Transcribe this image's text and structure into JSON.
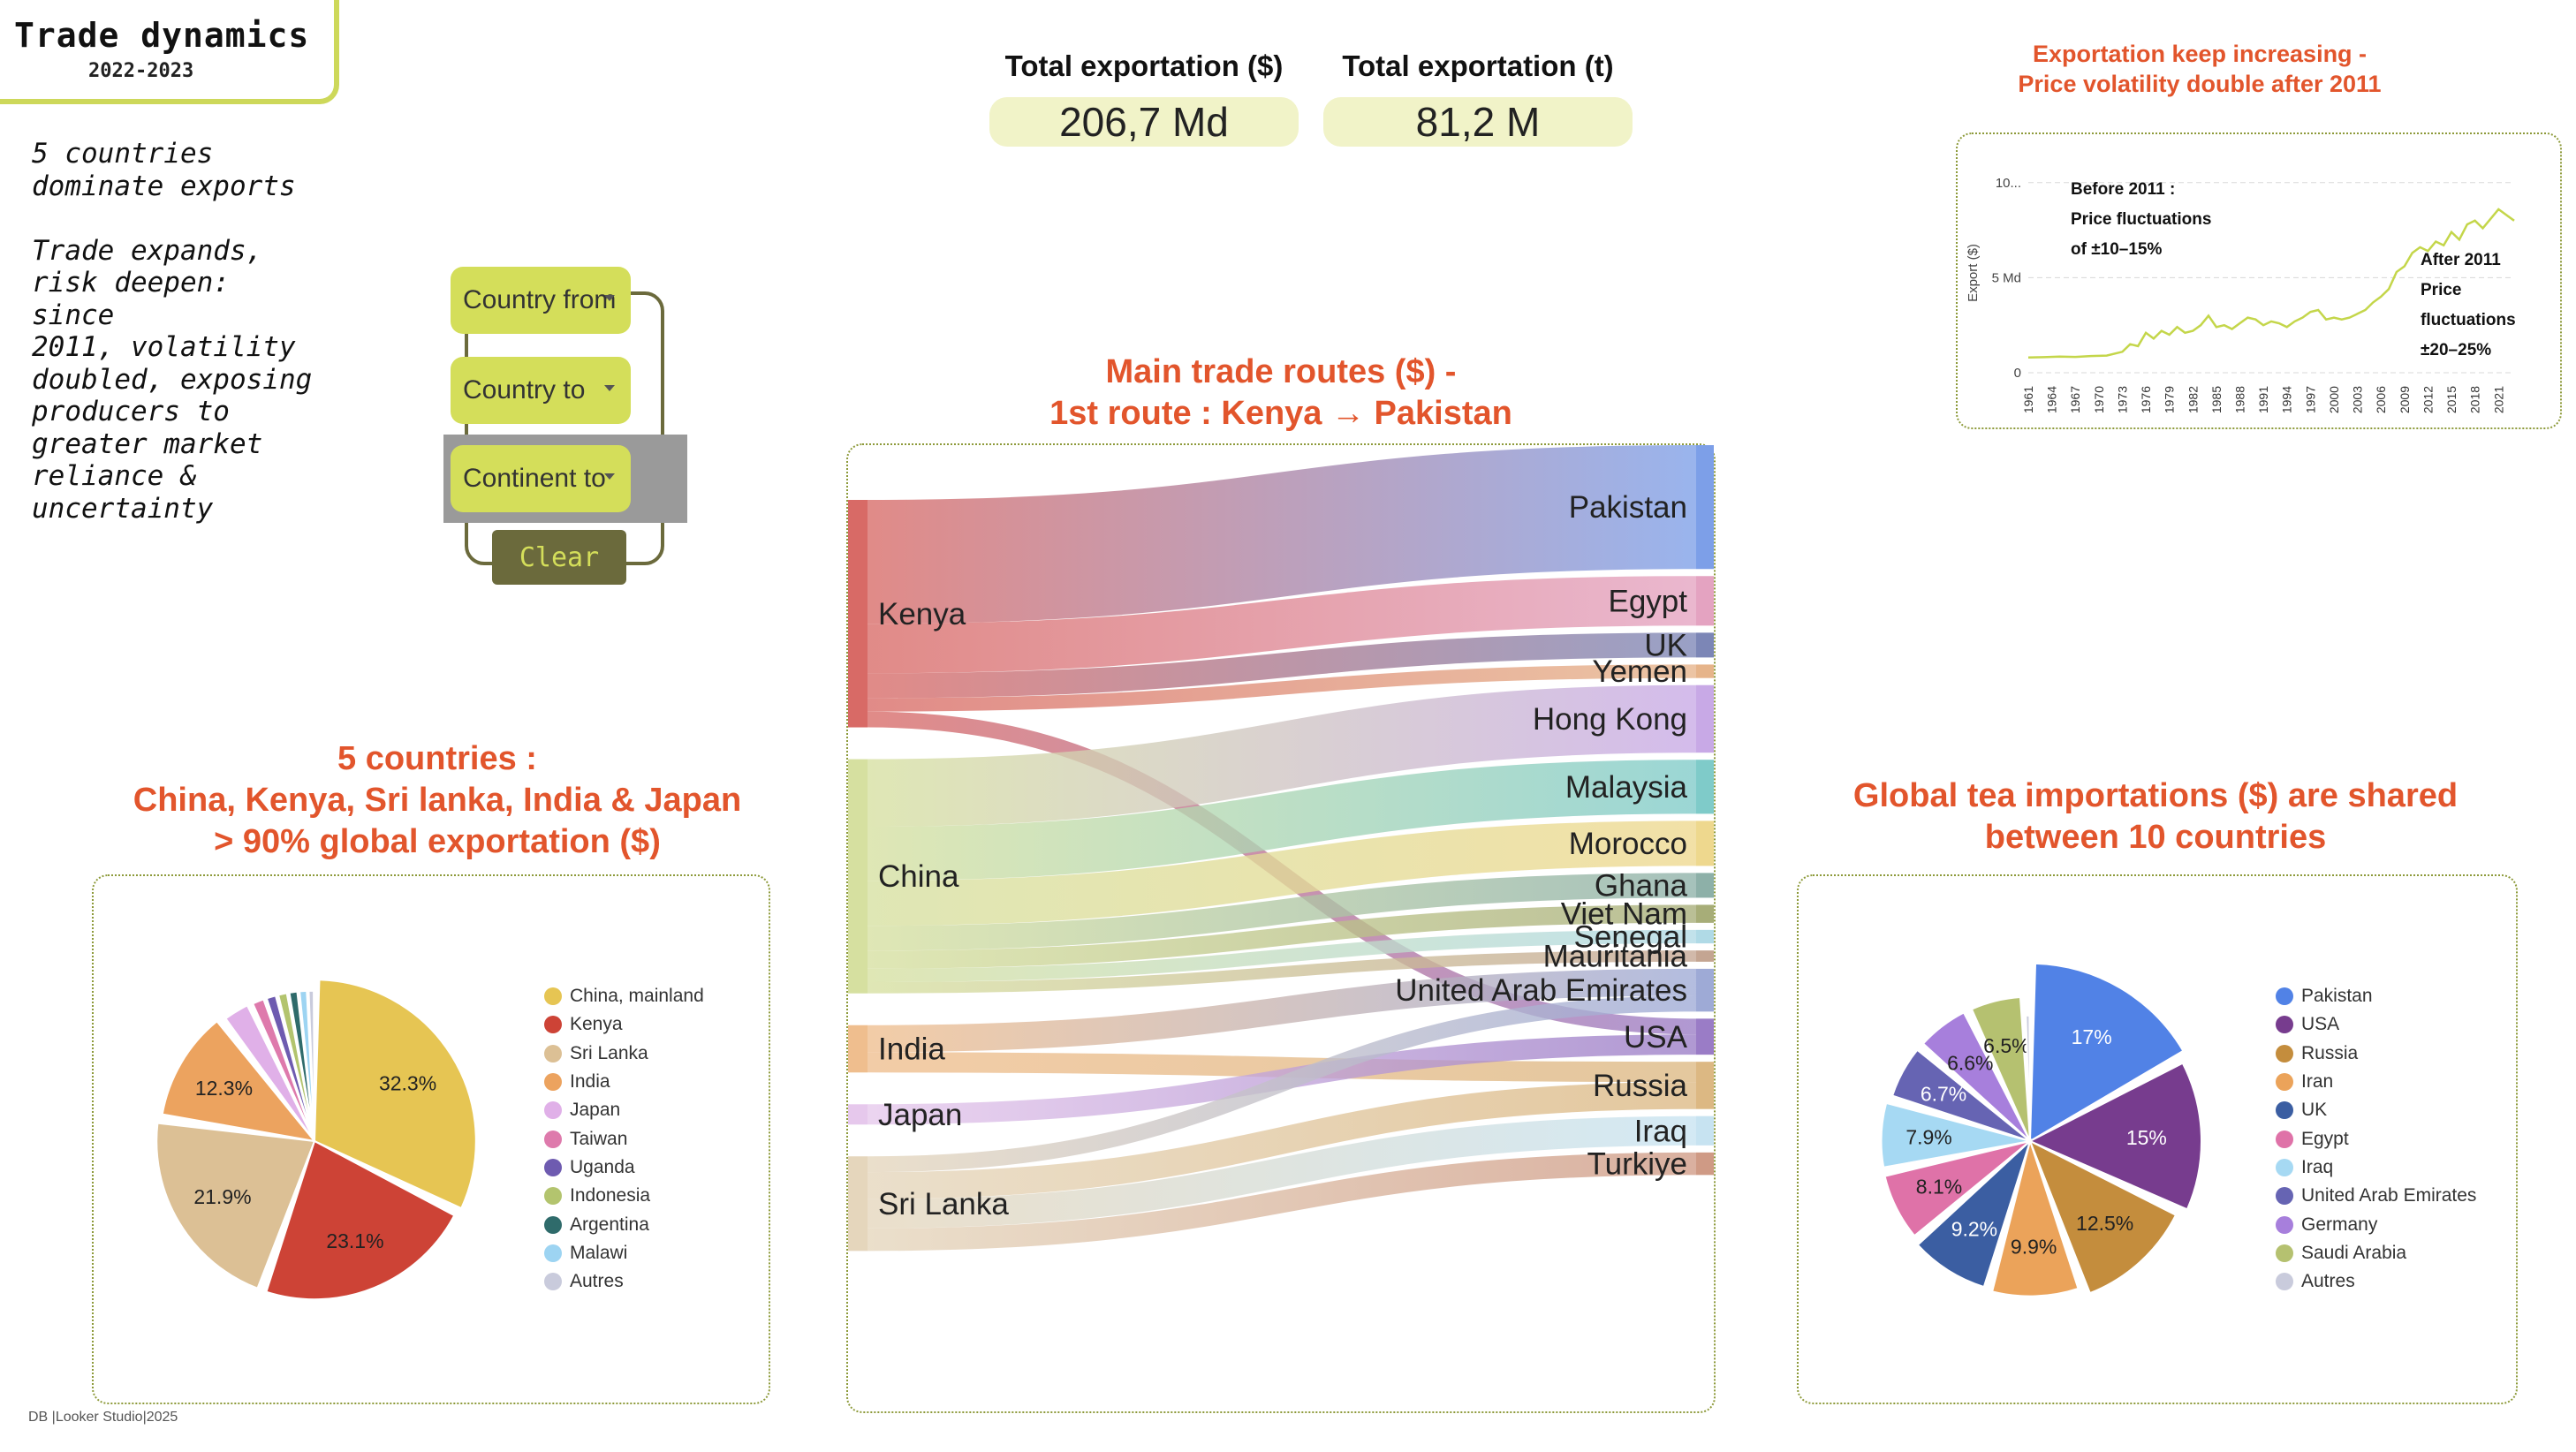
{
  "header": {
    "title": "Trade dynamics",
    "subtitle": "2022-2023"
  },
  "intro_text": "5 countries\ndominate exports\n\nTrade expands,\nrisk deepen: since\n2011, volatility\ndoubled, exposing\nproducers to\ngreater market\nreliance &\nuncertainty",
  "filters": {
    "country_from": "Country from",
    "country_to": "Country to",
    "continent_to": "Continent to",
    "clear": "Clear"
  },
  "kpis": [
    {
      "label": "Total exportation ($)",
      "value": "206,7 Md"
    },
    {
      "label": "Total exportation (t)",
      "value": "81,2 M"
    }
  ],
  "footer": "DB |Looker Studio|2025",
  "colors": {
    "accent": "#cdd85a",
    "title_orange": "#e2552c",
    "panel_border": "#8d9a3a",
    "kpi_bg": "#f1f3c8"
  },
  "chart_data": [
    {
      "id": "trend",
      "type": "line",
      "title": "Exportation keep increasing - Price volatility double after 2011",
      "title_lines": [
        "Exportation keep increasing -",
        "Price volatility double after 2011"
      ],
      "ylabel": "Export ($)",
      "yticks": [
        {
          "value": 0,
          "label": "0"
        },
        {
          "value": 5,
          "label": "5 Md"
        },
        {
          "value": 10,
          "label": "10..."
        }
      ],
      "ylim": [
        0,
        10.5
      ],
      "xlim": [
        1961,
        2023
      ],
      "xticks": [
        "1961",
        "1964",
        "1967",
        "1970",
        "1973",
        "1976",
        "1979",
        "1982",
        "1985",
        "1988",
        "1991",
        "1994",
        "1997",
        "2000",
        "2003",
        "2006",
        "2009",
        "2012",
        "2015",
        "2018",
        "2021"
      ],
      "points": [
        [
          1961,
          0.8
        ],
        [
          1963,
          0.82
        ],
        [
          1965,
          0.85
        ],
        [
          1967,
          0.83
        ],
        [
          1969,
          0.88
        ],
        [
          1971,
          0.9
        ],
        [
          1973,
          1.1
        ],
        [
          1974,
          1.5
        ],
        [
          1975,
          1.4
        ],
        [
          1976,
          2.1
        ],
        [
          1977,
          1.8
        ],
        [
          1978,
          2.2
        ],
        [
          1979,
          2.0
        ],
        [
          1980,
          2.4
        ],
        [
          1981,
          2.1
        ],
        [
          1982,
          2.2
        ],
        [
          1983,
          2.5
        ],
        [
          1984,
          3.0
        ],
        [
          1985,
          2.4
        ],
        [
          1986,
          2.5
        ],
        [
          1987,
          2.3
        ],
        [
          1988,
          2.6
        ],
        [
          1989,
          2.9
        ],
        [
          1990,
          2.8
        ],
        [
          1991,
          2.5
        ],
        [
          1992,
          2.7
        ],
        [
          1993,
          2.6
        ],
        [
          1994,
          2.4
        ],
        [
          1995,
          2.7
        ],
        [
          1996,
          2.9
        ],
        [
          1997,
          3.2
        ],
        [
          1998,
          3.3
        ],
        [
          1999,
          2.8
        ],
        [
          2000,
          2.9
        ],
        [
          2001,
          2.8
        ],
        [
          2002,
          2.9
        ],
        [
          2003,
          3.1
        ],
        [
          2004,
          3.3
        ],
        [
          2005,
          3.7
        ],
        [
          2006,
          4.0
        ],
        [
          2007,
          4.4
        ],
        [
          2008,
          5.3
        ],
        [
          2009,
          5.6
        ],
        [
          2010,
          6.3
        ],
        [
          2011,
          6.6
        ],
        [
          2012,
          6.4
        ],
        [
          2013,
          6.9
        ],
        [
          2014,
          6.7
        ],
        [
          2015,
          7.4
        ],
        [
          2016,
          7.0
        ],
        [
          2017,
          7.8
        ],
        [
          2018,
          8.0
        ],
        [
          2019,
          7.6
        ],
        [
          2020,
          8.1
        ],
        [
          2021,
          8.6
        ],
        [
          2022,
          8.3
        ],
        [
          2023,
          8.0
        ]
      ],
      "annotations": [
        {
          "lines": [
            "Before 2011 :",
            "Price fluctuations",
            "of ±10–15%"
          ]
        },
        {
          "lines": [
            "After 2011",
            "Price",
            "fluctuations",
            "±20–25%"
          ]
        }
      ]
    },
    {
      "id": "sankey",
      "type": "sankey",
      "title": "Main trade routes ($) - 1st route : Kenya → Pakistan",
      "title_lines": [
        "Main trade routes ($) -",
        "1st route : Kenya → Pakistan"
      ],
      "sources": [
        {
          "name": "Kenya",
          "color": "#d86a66"
        },
        {
          "name": "China",
          "color": "#d6e0a0"
        },
        {
          "name": "India",
          "color": "#efbe8e"
        },
        {
          "name": "Japan",
          "color": "#e6c8ec"
        },
        {
          "name": "Sri Lanka",
          "color": "#e5d6bc"
        }
      ],
      "targets": [
        {
          "name": "Pakistan",
          "color": "#7d9fe8"
        },
        {
          "name": "Egypt",
          "color": "#e4a3c1"
        },
        {
          "name": "UK",
          "color": "#7c86b6"
        },
        {
          "name": "Yemen",
          "color": "#e6b48a"
        },
        {
          "name": "Hong Kong",
          "color": "#c8a9e6"
        },
        {
          "name": "Malaysia",
          "color": "#7fcbc9"
        },
        {
          "name": "Morocco",
          "color": "#eed88e"
        },
        {
          "name": "Ghana",
          "color": "#8db0a8"
        },
        {
          "name": "Viet Nam",
          "color": "#a7ad78"
        },
        {
          "name": "Senegal",
          "color": "#b0dae6"
        },
        {
          "name": "Mauritania",
          "color": "#c4a592"
        },
        {
          "name": "United Arab Emirates",
          "color": "#9eaad6"
        },
        {
          "name": "USA",
          "color": "#9a7cc6"
        },
        {
          "name": "Russia",
          "color": "#dcb883"
        },
        {
          "name": "Iraq",
          "color": "#c7e3f1"
        },
        {
          "name": "Turkiye",
          "color": "#cf9a85"
        }
      ],
      "links": [
        {
          "source": "Kenya",
          "target": "Pakistan",
          "value": 55
        },
        {
          "source": "Kenya",
          "target": "Egypt",
          "value": 22
        },
        {
          "source": "Kenya",
          "target": "UK",
          "value": 11
        },
        {
          "source": "Kenya",
          "target": "Yemen",
          "value": 6
        },
        {
          "source": "Kenya",
          "target": "USA",
          "value": 7
        },
        {
          "source": "China",
          "target": "Hong Kong",
          "value": 30
        },
        {
          "source": "China",
          "target": "Malaysia",
          "value": 24
        },
        {
          "source": "China",
          "target": "Morocco",
          "value": 20
        },
        {
          "source": "China",
          "target": "Ghana",
          "value": 11
        },
        {
          "source": "China",
          "target": "Viet Nam",
          "value": 8
        },
        {
          "source": "China",
          "target": "Senegal",
          "value": 6
        },
        {
          "source": "China",
          "target": "Mauritania",
          "value": 5
        },
        {
          "source": "India",
          "target": "United Arab Emirates",
          "value": 12
        },
        {
          "source": "India",
          "target": "Russia",
          "value": 9
        },
        {
          "source": "Japan",
          "target": "USA",
          "value": 9
        },
        {
          "source": "Sri Lanka",
          "target": "United Arab Emirates",
          "value": 7
        },
        {
          "source": "Sri Lanka",
          "target": "Russia",
          "value": 12
        },
        {
          "source": "Sri Lanka",
          "target": "Iraq",
          "value": 13
        },
        {
          "source": "Sri Lanka",
          "target": "Turkiye",
          "value": 10
        }
      ]
    },
    {
      "id": "exporters",
      "type": "pie",
      "title": "5 countries : China, Kenya, Sri lanka, India & Japan > 90% global exportation ($)",
      "title_lines": [
        "5 countries :",
        "China, Kenya, Sri lanka, India & Japan",
        "> 90% global exportation ($)"
      ],
      "slices": [
        {
          "label": "China, mainland",
          "value": 32.3,
          "display": "32.3%",
          "color": "#e6c553"
        },
        {
          "label": "Kenya",
          "value": 23.1,
          "display": "23.1%",
          "color": "#cd4336"
        },
        {
          "label": "Sri Lanka",
          "value": 21.9,
          "display": "21.9%",
          "color": "#dcc095"
        },
        {
          "label": "India",
          "value": 12.3,
          "display": "12.3%",
          "color": "#eca35f"
        },
        {
          "label": "Japan",
          "value": 3.5,
          "display": "",
          "color": "#e0b0e8"
        },
        {
          "label": "Taiwan",
          "value": 1.6,
          "display": "",
          "color": "#de7aac"
        },
        {
          "label": "Uganda",
          "value": 1.3,
          "display": "",
          "color": "#6e5bb0"
        },
        {
          "label": "Indonesia",
          "value": 1.2,
          "display": "",
          "color": "#b3c46e"
        },
        {
          "label": "Argentina",
          "value": 1.1,
          "display": "",
          "color": "#2f6b6b"
        },
        {
          "label": "Malawi",
          "value": 1.0,
          "display": "",
          "color": "#9dd4f2"
        },
        {
          "label": "Autres",
          "value": 0.7,
          "display": "",
          "color": "#c9cbdc"
        }
      ]
    },
    {
      "id": "importers",
      "type": "pie",
      "title": "Global tea importations ($) are shared between 10 countries",
      "title_lines": [
        "Global tea importations ($) are shared",
        "between 10 countries"
      ],
      "slices": [
        {
          "label": "Pakistan",
          "value": 17,
          "display": "17%",
          "color": "#5182e6"
        },
        {
          "label": "USA",
          "value": 15,
          "display": "15%",
          "color": "#773c8e"
        },
        {
          "label": "Russia",
          "value": 12.5,
          "display": "12.5%",
          "color": "#c48d3d"
        },
        {
          "label": "Iran",
          "value": 9.9,
          "display": "9.9%",
          "color": "#eba35a"
        },
        {
          "label": "UK",
          "value": 9.2,
          "display": "9.2%",
          "color": "#3b5ea2"
        },
        {
          "label": "Egypt",
          "value": 8.1,
          "display": "8.1%",
          "color": "#df72a8"
        },
        {
          "label": "Iraq",
          "value": 7.9,
          "display": "7.9%",
          "color": "#a6d9f3"
        },
        {
          "label": "United Arab Emirates",
          "value": 6.7,
          "display": "6.7%",
          "color": "#6664b3"
        },
        {
          "label": "Germany",
          "value": 6.6,
          "display": "6.6%",
          "color": "#a77fdc"
        },
        {
          "label": "Saudi Arabia",
          "value": 6.5,
          "display": "6.5%",
          "color": "#b5c170"
        },
        {
          "label": "Autres",
          "value": 0.6,
          "display": "",
          "color": "#c9cbdc"
        }
      ]
    }
  ]
}
